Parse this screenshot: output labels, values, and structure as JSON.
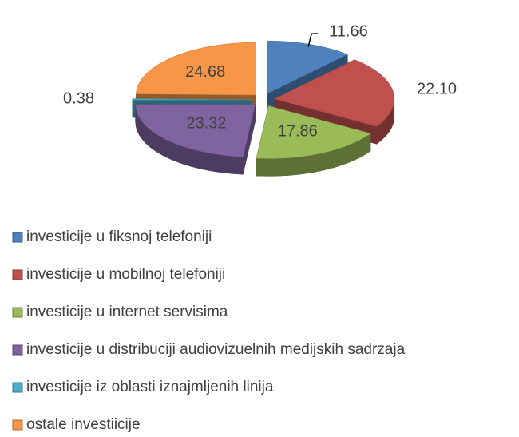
{
  "chart_data": {
    "type": "pie",
    "categories": [
      "investicije u fiksnoj telefoniji",
      "investicije u mobilnoj telefoniji",
      "investicije u internet servisima",
      "investicije u distribuciji audiovizuelnih medijskih sadrzaja",
      "investicije iz oblasti iznajmljenih linija",
      "ostale investiicije"
    ],
    "values": [
      11.66,
      22.1,
      17.86,
      23.32,
      0.38,
      24.68
    ],
    "value_labels": [
      "11.66",
      "22.10",
      "17.86",
      "23.32",
      "0.38",
      "24.68"
    ],
    "colors": [
      "#4f81bd",
      "#c0504d",
      "#9bbb59",
      "#8064a2",
      "#4bacc6",
      "#f79646"
    ]
  }
}
